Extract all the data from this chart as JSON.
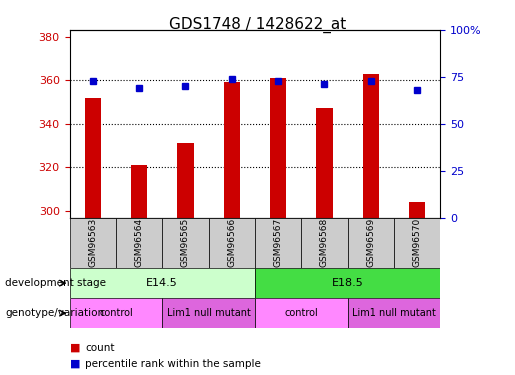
{
  "title": "GDS1748 / 1428622_at",
  "samples": [
    "GSM96563",
    "GSM96564",
    "GSM96565",
    "GSM96566",
    "GSM96567",
    "GSM96568",
    "GSM96569",
    "GSM96570"
  ],
  "bar_values": [
    352,
    321,
    331,
    359,
    361,
    347,
    363,
    304
  ],
  "bar_base": 297,
  "percentile_values": [
    73,
    69,
    70,
    74,
    73,
    71,
    73,
    68
  ],
  "ylim_left": [
    297,
    383
  ],
  "ylim_right": [
    0,
    100
  ],
  "yticks_left": [
    300,
    320,
    340,
    360,
    380
  ],
  "ytick_labels_right": [
    "0",
    "25",
    "50",
    "75",
    "100%"
  ],
  "yticks_right": [
    0,
    25,
    50,
    75,
    100
  ],
  "bar_color": "#cc0000",
  "percentile_color": "#0000cc",
  "tick_label_color_left": "#cc0000",
  "tick_label_color_right": "#0000cc",
  "grid_yticks": [
    320,
    340,
    360
  ],
  "stage_row": {
    "label": "development stage",
    "groups": [
      {
        "text": "E14.5",
        "start": 0,
        "end": 4,
        "color": "#ccffcc"
      },
      {
        "text": "E18.5",
        "start": 4,
        "end": 8,
        "color": "#44dd44"
      }
    ]
  },
  "genotype_row": {
    "label": "genotype/variation",
    "groups": [
      {
        "text": "control",
        "start": 0,
        "end": 2,
        "color": "#ff88ff"
      },
      {
        "text": "Lim1 null mutant",
        "start": 2,
        "end": 4,
        "color": "#dd66dd"
      },
      {
        "text": "control",
        "start": 4,
        "end": 6,
        "color": "#ff88ff"
      },
      {
        "text": "Lim1 null mutant",
        "start": 6,
        "end": 8,
        "color": "#dd66dd"
      }
    ]
  },
  "legend_count_color": "#cc0000",
  "legend_percentile_color": "#0000cc",
  "sample_col_bg": "#cccccc"
}
